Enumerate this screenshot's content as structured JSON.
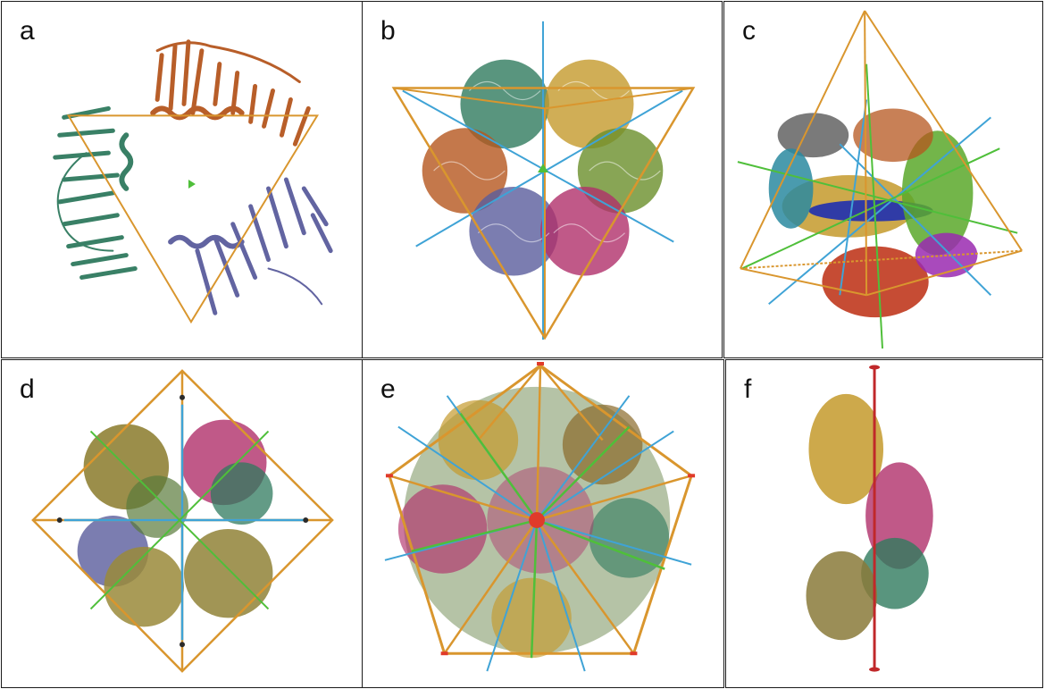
{
  "panels": [
    {
      "label": "a",
      "symmetry_frame": "triangle",
      "subunit_colors": [
        "#b5561e",
        "#2f7a5e",
        "#5a5c9c"
      ]
    },
    {
      "label": "b",
      "symmetry_frame": "tetrahedron",
      "subunit_colors": [
        "#2f7a5e",
        "#c49a2c",
        "#b5561e",
        "#6a8f2a",
        "#5a5c9c",
        "#b0306a"
      ]
    },
    {
      "label": "c",
      "symmetry_frame": "tetrahedron-oblique",
      "subunit_colors": [
        "#6b6b6b",
        "#c49a2c",
        "#1f2fb0",
        "#5aa82a",
        "#c0391e",
        "#9a2ab0",
        "#2a8aa0"
      ]
    },
    {
      "label": "d",
      "symmetry_frame": "octahedron",
      "subunit_colors": [
        "#8a7a2a",
        "#b0306a",
        "#2f7a5e",
        "#5a5c9c",
        "#9a8a3a"
      ]
    },
    {
      "label": "e",
      "symmetry_frame": "icosahedron",
      "subunit_colors": [
        "#c49a2c",
        "#b0306a",
        "#5a7a3a",
        "#2f7a5e",
        "#8a6a2a"
      ]
    },
    {
      "label": "f",
      "symmetry_frame": "helical-axis",
      "subunit_colors": [
        "#c49a2c",
        "#b0306a",
        "#2f7a5e",
        "#8a7a3a"
      ]
    }
  ],
  "colors": {
    "frame": "#d9962e",
    "axis2": "#3fa3d6",
    "axis3": "#4fbf3a",
    "axis5": "#e03a2a",
    "axisEnd": "#2a2a2a"
  }
}
